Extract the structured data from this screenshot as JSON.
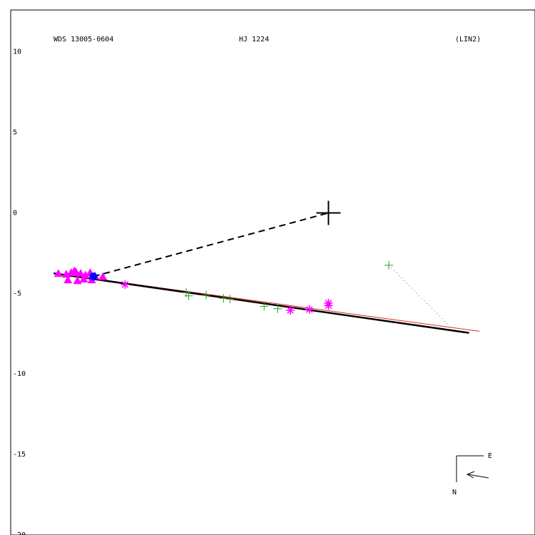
{
  "header": {
    "left": "WDS 13005-0604",
    "center": "HJ 1224",
    "right": "(LIN2)"
  },
  "compass": {
    "east_label": "E",
    "north_label": "N"
  },
  "chart_data": {
    "type": "scatter",
    "title": "",
    "xlabel": "",
    "ylabel": "",
    "y_ticks": [
      "10",
      "5",
      "0",
      "-5",
      "-10",
      "-15",
      "-20"
    ],
    "y_tick_values": [
      10,
      5,
      0,
      -5,
      -10,
      -15,
      -20
    ],
    "xlim": [
      -20.0,
      13.0
    ],
    "ylim": [
      -20.0,
      12.6
    ],
    "grid": false,
    "colors": {
      "primary": "#000000",
      "fit_line": "#000000",
      "alt_fit_line": "#e8262b",
      "green_obs": "#2a9d2a",
      "magenta_obs": "#ff00ff",
      "blue_obs": "#0000ff",
      "residual": "#2a9d2a"
    },
    "primary_star": {
      "x": 0.0,
      "y": 0.0
    },
    "fit_line": {
      "x": [
        -17.3,
        8.85
      ],
      "y": [
        -3.75,
        -7.45
      ]
    },
    "alt_fit_line": {
      "x": [
        -17.3,
        9.5
      ],
      "y": [
        -3.75,
        -7.35
      ]
    },
    "dashed_link": {
      "x": [
        -14.8,
        0.0
      ],
      "y": [
        -3.95,
        0.0
      ]
    },
    "residual_link": {
      "x": [
        3.8,
        7.6
      ],
      "y": [
        -3.25,
        -7.0
      ]
    },
    "series": [
      {
        "marker": "plus",
        "color": "#2a9d2a",
        "x": [
          3.8,
          -8.95,
          -8.8,
          -7.7,
          -6.6,
          -6.2,
          -4.05,
          -3.2
        ],
        "y": [
          -3.25,
          -4.95,
          -5.15,
          -5.1,
          -5.3,
          -5.35,
          -5.8,
          -5.95
        ]
      },
      {
        "marker": "asterisk",
        "color": "#ff00ff",
        "x": [
          -12.8,
          -2.4,
          -1.2,
          0.0,
          0.0
        ],
        "y": [
          -4.45,
          -6.05,
          -6.0,
          -5.6,
          -5.75
        ]
      },
      {
        "marker": "triangle",
        "color": "#ff00ff",
        "x": [
          -17.0,
          -16.5,
          -16.2,
          -15.9,
          -15.6,
          -15.3,
          -15.0,
          -14.7,
          -16.4,
          -15.8,
          -15.4,
          -14.9,
          -14.2,
          -16.0
        ],
        "y": [
          -3.75,
          -3.8,
          -3.7,
          -3.65,
          -3.75,
          -3.85,
          -3.7,
          -3.9,
          -4.15,
          -4.2,
          -4.1,
          -4.15,
          -3.95,
          -3.6
        ]
      },
      {
        "marker": "circle",
        "color": "#0000ff",
        "x": [
          -14.8
        ],
        "y": [
          -3.95
        ]
      }
    ]
  }
}
